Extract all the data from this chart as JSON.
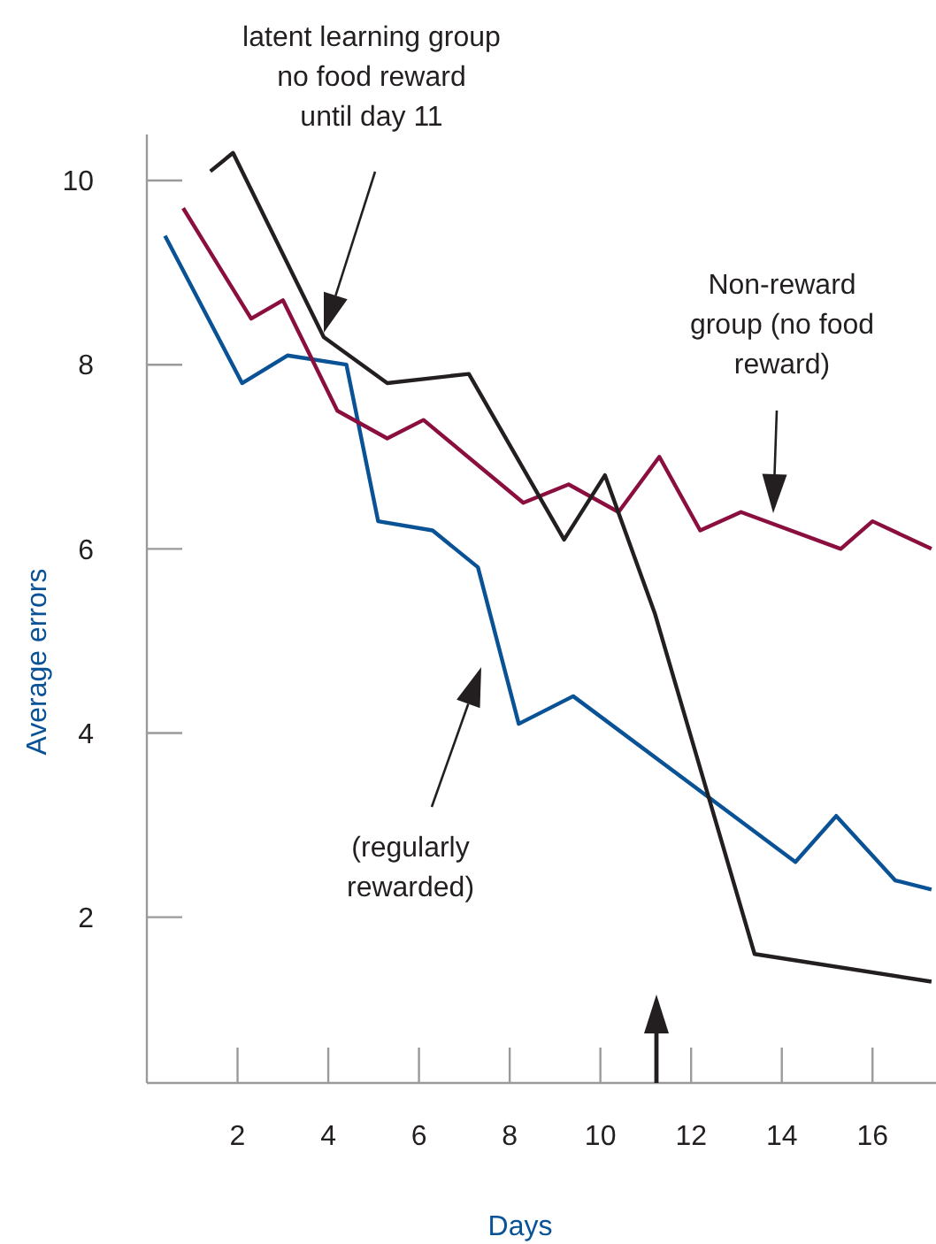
{
  "chart_data": {
    "type": "line",
    "xlabel": "Days",
    "ylabel": "Average errors",
    "xlim": [
      0,
      17.4
    ],
    "ylim": [
      0.2,
      10.5
    ],
    "xticks": [
      2,
      4,
      6,
      8,
      10,
      12,
      14,
      16
    ],
    "yticks": [
      2,
      4,
      6,
      8,
      10
    ],
    "grid": false,
    "marker": "none",
    "line_style": "solid",
    "series": [
      {
        "color": "#0a5296",
        "x": [
          0.4,
          2.1,
          3.1,
          4.4,
          5.1,
          6.3,
          7.3,
          8.2,
          9.4,
          14.3,
          15.2,
          16.5,
          17.3
        ],
        "values": [
          9.4,
          7.8,
          8.1,
          8.0,
          6.3,
          6.2,
          5.8,
          4.1,
          4.4,
          2.6,
          3.1,
          2.4,
          2.3
        ]
      },
      {
        "color": "#8a0f3e",
        "x": [
          0.8,
          2.3,
          3.0,
          4.2,
          5.3,
          6.1,
          8.3,
          9.3,
          10.4,
          11.3,
          12.2,
          13.1,
          15.3,
          16.0,
          17.3
        ],
        "values": [
          9.7,
          8.5,
          8.7,
          7.5,
          7.2,
          7.4,
          6.5,
          6.7,
          6.4,
          7.0,
          6.2,
          6.4,
          6.0,
          6.3,
          6.0
        ]
      },
      {
        "color": "#231f20",
        "x": [
          1.4,
          1.9,
          3.9,
          5.3,
          7.1,
          9.2,
          10.1,
          11.2,
          13.4,
          17.3
        ],
        "values": [
          10.1,
          10.3,
          8.3,
          7.8,
          7.9,
          6.1,
          6.8,
          5.3,
          1.6,
          1.3
        ]
      }
    ],
    "annotations": [
      "latent learning group\nno food reward\nuntil day 11",
      "Non-reward\ngroup (no food\nreward)",
      "(regularly\nrewarded)"
    ]
  }
}
